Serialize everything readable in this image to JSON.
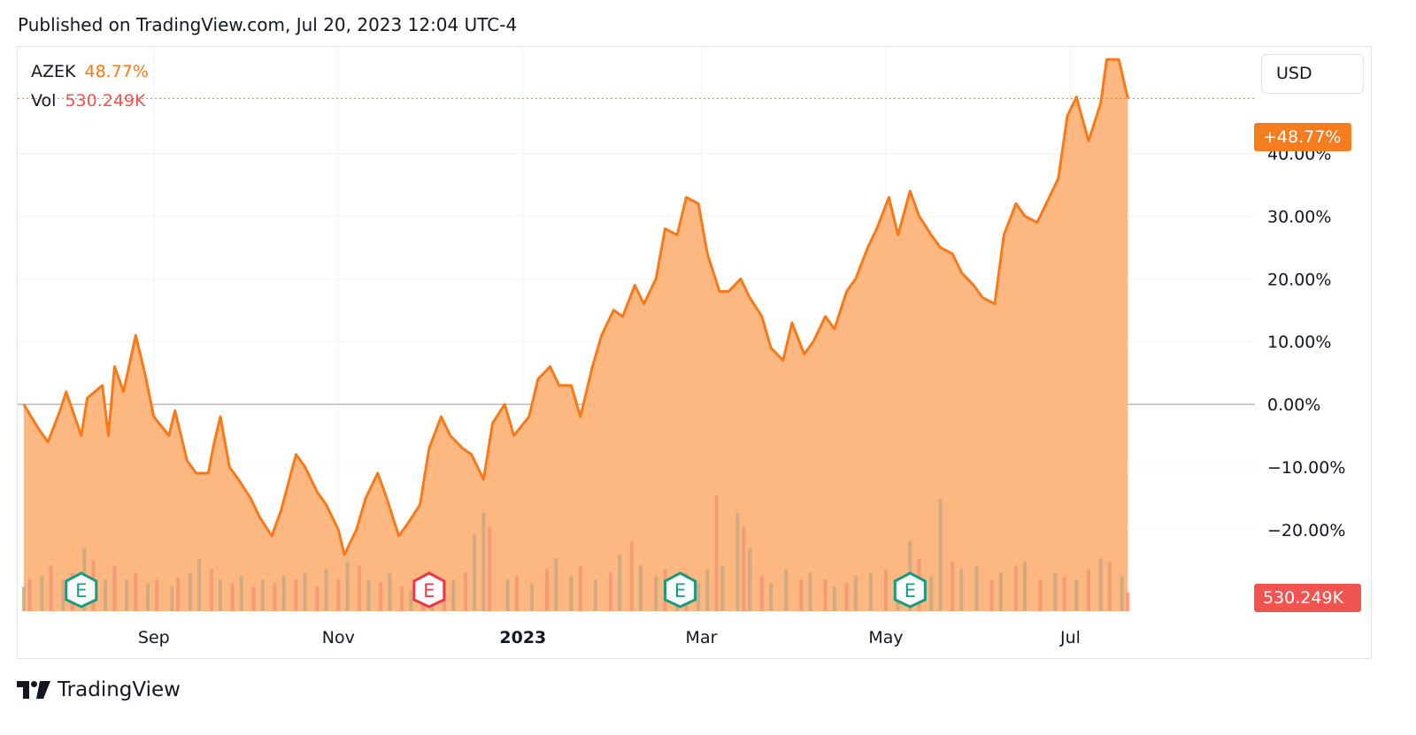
{
  "header": {
    "published_text": "Published on TradingView.com, Jul 20, 2023 12:04 UTC-4"
  },
  "legend": {
    "symbol": "AZEK",
    "change": "48.77%",
    "vol_label": "Vol",
    "vol_value": "530.249K"
  },
  "currency_button": "USD",
  "last_value_tag": "+48.77%",
  "volume_tag": "530.249K",
  "footer": {
    "brand": "TradingView"
  },
  "colors": {
    "line": "#f7791a",
    "area": "#fdb37a",
    "tag": "#f57c1f",
    "vol_tag": "#f05350",
    "vol_up": "#c9a881",
    "vol_down": "#f59676",
    "earnings_green": "#1b9a82",
    "earnings_red": "#e8384a",
    "grid": "#f0f3fa",
    "zero_line": "#9598a1"
  },
  "chart_data": {
    "type": "area",
    "series_name": "AZEK",
    "y_unit": "percent change",
    "ylim": [
      -33,
      57
    ],
    "y_ticks": [
      {
        "value": 40,
        "label": "40.00%"
      },
      {
        "value": 30,
        "label": "30.00%"
      },
      {
        "value": 20,
        "label": "20.00%"
      },
      {
        "value": 10,
        "label": "10.00%"
      },
      {
        "value": 0,
        "label": "0.00%"
      },
      {
        "value": -10,
        "label": "−10.00%"
      },
      {
        "value": -20,
        "label": "−20.00%"
      }
    ],
    "x_ticks": [
      {
        "date": "2022-09-01",
        "label": "Sep",
        "bold": false
      },
      {
        "date": "2022-11-01",
        "label": "Nov",
        "bold": false
      },
      {
        "date": "2023-01-01",
        "label": "2023",
        "bold": true
      },
      {
        "date": "2023-03-01",
        "label": "Mar",
        "bold": false
      },
      {
        "date": "2023-05-01",
        "label": "May",
        "bold": false
      },
      {
        "date": "2023-07-01",
        "label": "Jul",
        "bold": false
      }
    ],
    "xlim": [
      "2022-07-18",
      "2023-08-31"
    ],
    "points": [
      [
        "2022-07-20",
        0
      ],
      [
        "2022-07-25",
        -4
      ],
      [
        "2022-07-28",
        -6
      ],
      [
        "2022-08-01",
        -1
      ],
      [
        "2022-08-03",
        2
      ],
      [
        "2022-08-08",
        -5
      ],
      [
        "2022-08-10",
        1
      ],
      [
        "2022-08-15",
        3
      ],
      [
        "2022-08-17",
        -5
      ],
      [
        "2022-08-19",
        6
      ],
      [
        "2022-08-22",
        2
      ],
      [
        "2022-08-26",
        11
      ],
      [
        "2022-08-29",
        5
      ],
      [
        "2022-09-01",
        -2
      ],
      [
        "2022-09-06",
        -5
      ],
      [
        "2022-09-08",
        -1
      ],
      [
        "2022-09-12",
        -9
      ],
      [
        "2022-09-15",
        -11
      ],
      [
        "2022-09-19",
        -11
      ],
      [
        "2022-09-21",
        -6
      ],
      [
        "2022-09-23",
        -2
      ],
      [
        "2022-09-26",
        -10
      ],
      [
        "2022-09-29",
        -12
      ],
      [
        "2022-10-03",
        -15
      ],
      [
        "2022-10-06",
        -18
      ],
      [
        "2022-10-10",
        -21
      ],
      [
        "2022-10-13",
        -17
      ],
      [
        "2022-10-18",
        -8
      ],
      [
        "2022-10-21",
        -10
      ],
      [
        "2022-10-25",
        -14
      ],
      [
        "2022-10-28",
        -16
      ],
      [
        "2022-11-01",
        -20
      ],
      [
        "2022-11-03",
        -24
      ],
      [
        "2022-11-07",
        -20
      ],
      [
        "2022-11-10",
        -15
      ],
      [
        "2022-11-14",
        -11
      ],
      [
        "2022-11-17",
        -15
      ],
      [
        "2022-11-21",
        -21
      ],
      [
        "2022-11-24",
        -19
      ],
      [
        "2022-11-28",
        -16
      ],
      [
        "2022-12-01",
        -7
      ],
      [
        "2022-12-05",
        -2
      ],
      [
        "2022-12-08",
        -5
      ],
      [
        "2022-12-12",
        -7
      ],
      [
        "2022-12-15",
        -8
      ],
      [
        "2022-12-19",
        -12
      ],
      [
        "2022-12-22",
        -3
      ],
      [
        "2022-12-26",
        0
      ],
      [
        "2022-12-29",
        -5
      ],
      [
        "2023-01-03",
        -2
      ],
      [
        "2023-01-06",
        4
      ],
      [
        "2023-01-10",
        6
      ],
      [
        "2023-01-13",
        3
      ],
      [
        "2023-01-17",
        3
      ],
      [
        "2023-01-20",
        -2
      ],
      [
        "2023-01-24",
        6
      ],
      [
        "2023-01-27",
        11
      ],
      [
        "2023-01-31",
        15
      ],
      [
        "2023-02-03",
        14
      ],
      [
        "2023-02-07",
        19
      ],
      [
        "2023-02-10",
        16
      ],
      [
        "2023-02-14",
        20
      ],
      [
        "2023-02-17",
        28
      ],
      [
        "2023-02-21",
        27
      ],
      [
        "2023-02-24",
        33
      ],
      [
        "2023-02-28",
        32
      ],
      [
        "2023-03-03",
        24
      ],
      [
        "2023-03-07",
        18
      ],
      [
        "2023-03-10",
        18
      ],
      [
        "2023-03-14",
        20
      ],
      [
        "2023-03-17",
        17
      ],
      [
        "2023-03-21",
        14
      ],
      [
        "2023-03-24",
        9
      ],
      [
        "2023-03-28",
        7
      ],
      [
        "2023-03-31",
        13
      ],
      [
        "2023-04-04",
        8
      ],
      [
        "2023-04-07",
        10
      ],
      [
        "2023-04-11",
        14
      ],
      [
        "2023-04-14",
        12
      ],
      [
        "2023-04-18",
        18
      ],
      [
        "2023-04-21",
        20
      ],
      [
        "2023-04-25",
        25
      ],
      [
        "2023-04-28",
        28
      ],
      [
        "2023-05-02",
        33
      ],
      [
        "2023-05-05",
        27
      ],
      [
        "2023-05-09",
        34
      ],
      [
        "2023-05-12",
        30
      ],
      [
        "2023-05-16",
        27
      ],
      [
        "2023-05-19",
        25
      ],
      [
        "2023-05-23",
        24
      ],
      [
        "2023-05-26",
        21
      ],
      [
        "2023-05-30",
        19
      ],
      [
        "2023-06-02",
        17
      ],
      [
        "2023-06-06",
        16
      ],
      [
        "2023-06-09",
        27
      ],
      [
        "2023-06-13",
        32
      ],
      [
        "2023-06-16",
        30
      ],
      [
        "2023-06-20",
        29
      ],
      [
        "2023-06-23",
        32
      ],
      [
        "2023-06-27",
        36
      ],
      [
        "2023-06-30",
        46
      ],
      [
        "2023-07-03",
        49
      ],
      [
        "2023-07-07",
        42
      ],
      [
        "2023-07-11",
        48
      ],
      [
        "2023-07-13",
        55
      ],
      [
        "2023-07-17",
        55
      ],
      [
        "2023-07-20",
        48.77
      ]
    ],
    "volume_series_name": "Vol",
    "volume": {
      "unit": "shares (K)",
      "ylim": [
        0,
        3800
      ],
      "last": 530.249,
      "bars": [
        [
          "2022-07-20",
          700,
          1
        ],
        [
          "2022-07-22",
          900,
          0
        ],
        [
          "2022-07-26",
          1000,
          1
        ],
        [
          "2022-07-29",
          1300,
          0
        ],
        [
          "2022-08-02",
          900,
          1
        ],
        [
          "2022-08-05",
          1100,
          0
        ],
        [
          "2022-08-09",
          1800,
          1
        ],
        [
          "2022-08-12",
          1450,
          0
        ],
        [
          "2022-08-16",
          900,
          1
        ],
        [
          "2022-08-19",
          1300,
          0
        ],
        [
          "2022-08-23",
          900,
          1
        ],
        [
          "2022-08-26",
          1100,
          0
        ],
        [
          "2022-08-30",
          800,
          1
        ],
        [
          "2022-09-02",
          900,
          0
        ],
        [
          "2022-09-07",
          700,
          1
        ],
        [
          "2022-09-09",
          950,
          0
        ],
        [
          "2022-09-13",
          1100,
          1
        ],
        [
          "2022-09-16",
          1500,
          1
        ],
        [
          "2022-09-20",
          1200,
          0
        ],
        [
          "2022-09-23",
          900,
          1
        ],
        [
          "2022-09-27",
          800,
          0
        ],
        [
          "2022-09-30",
          1000,
          1
        ],
        [
          "2022-10-04",
          700,
          0
        ],
        [
          "2022-10-07",
          900,
          1
        ],
        [
          "2022-10-11",
          800,
          0
        ],
        [
          "2022-10-14",
          1000,
          1
        ],
        [
          "2022-10-18",
          900,
          0
        ],
        [
          "2022-10-21",
          1100,
          1
        ],
        [
          "2022-10-25",
          700,
          0
        ],
        [
          "2022-10-28",
          1200,
          1
        ],
        [
          "2022-11-01",
          900,
          0
        ],
        [
          "2022-11-04",
          1400,
          1
        ],
        [
          "2022-11-08",
          1300,
          0
        ],
        [
          "2022-11-11",
          900,
          1
        ],
        [
          "2022-11-15",
          800,
          0
        ],
        [
          "2022-11-18",
          1100,
          1
        ],
        [
          "2022-11-22",
          700,
          0
        ],
        [
          "2022-11-25",
          600,
          1
        ],
        [
          "2022-11-29",
          900,
          0
        ],
        [
          "2022-12-02",
          1000,
          1
        ],
        [
          "2022-12-06",
          800,
          0
        ],
        [
          "2022-12-09",
          900,
          1
        ],
        [
          "2022-12-13",
          1100,
          0
        ],
        [
          "2022-12-16",
          2200,
          1
        ],
        [
          "2022-12-19",
          2800,
          1
        ],
        [
          "2022-12-21",
          2400,
          0
        ],
        [
          "2022-12-27",
          900,
          1
        ],
        [
          "2022-12-30",
          1000,
          0
        ],
        [
          "2023-01-04",
          800,
          1
        ],
        [
          "2023-01-09",
          1200,
          0
        ],
        [
          "2023-01-12",
          1500,
          1
        ],
        [
          "2023-01-17",
          1000,
          1
        ],
        [
          "2023-01-20",
          1300,
          0
        ],
        [
          "2023-01-25",
          900,
          1
        ],
        [
          "2023-01-30",
          1100,
          0
        ],
        [
          "2023-02-02",
          1600,
          1
        ],
        [
          "2023-02-06",
          2000,
          0
        ],
        [
          "2023-02-09",
          1300,
          1
        ],
        [
          "2023-02-14",
          1000,
          1
        ],
        [
          "2023-02-17",
          1200,
          0
        ],
        [
          "2023-02-21",
          900,
          1
        ],
        [
          "2023-02-24",
          1100,
          0
        ],
        [
          "2023-02-28",
          800,
          1
        ],
        [
          "2023-03-03",
          1200,
          1
        ],
        [
          "2023-03-06",
          3300,
          0
        ],
        [
          "2023-03-08",
          1300,
          1
        ],
        [
          "2023-03-13",
          2800,
          1
        ],
        [
          "2023-03-15",
          2400,
          0
        ],
        [
          "2023-03-17",
          1800,
          1
        ],
        [
          "2023-03-21",
          1000,
          0
        ],
        [
          "2023-03-24",
          800,
          1
        ],
        [
          "2023-03-29",
          1200,
          1
        ],
        [
          "2023-04-03",
          900,
          0
        ],
        [
          "2023-04-06",
          1100,
          1
        ],
        [
          "2023-04-11",
          900,
          0
        ],
        [
          "2023-04-14",
          700,
          1
        ],
        [
          "2023-04-18",
          800,
          0
        ],
        [
          "2023-04-21",
          1000,
          1
        ],
        [
          "2023-04-26",
          1100,
          1
        ],
        [
          "2023-05-01",
          1200,
          0
        ],
        [
          "2023-05-05",
          900,
          1
        ],
        [
          "2023-05-09",
          2000,
          1
        ],
        [
          "2023-05-12",
          1500,
          0
        ],
        [
          "2023-05-16",
          1000,
          1
        ],
        [
          "2023-05-19",
          3200,
          1
        ],
        [
          "2023-05-23",
          1400,
          0
        ],
        [
          "2023-05-26",
          1200,
          1
        ],
        [
          "2023-05-31",
          1300,
          1
        ],
        [
          "2023-06-05",
          900,
          0
        ],
        [
          "2023-06-08",
          1100,
          1
        ],
        [
          "2023-06-13",
          1300,
          0
        ],
        [
          "2023-06-16",
          1400,
          1
        ],
        [
          "2023-06-21",
          900,
          0
        ],
        [
          "2023-06-26",
          1100,
          1
        ],
        [
          "2023-06-29",
          1000,
          0
        ],
        [
          "2023-07-03",
          900,
          1
        ],
        [
          "2023-07-07",
          1200,
          0
        ],
        [
          "2023-07-11",
          1500,
          1
        ],
        [
          "2023-07-14",
          1400,
          0
        ],
        [
          "2023-07-18",
          1000,
          1
        ],
        [
          "2023-07-20",
          530,
          0
        ]
      ]
    },
    "earnings_events": [
      {
        "date": "2022-08-08",
        "label": "E",
        "kind": "green"
      },
      {
        "date": "2022-12-01",
        "label": "E",
        "kind": "red"
      },
      {
        "date": "2023-02-22",
        "label": "E",
        "kind": "green"
      },
      {
        "date": "2023-05-09",
        "label": "E",
        "kind": "green"
      }
    ],
    "grid": true
  }
}
